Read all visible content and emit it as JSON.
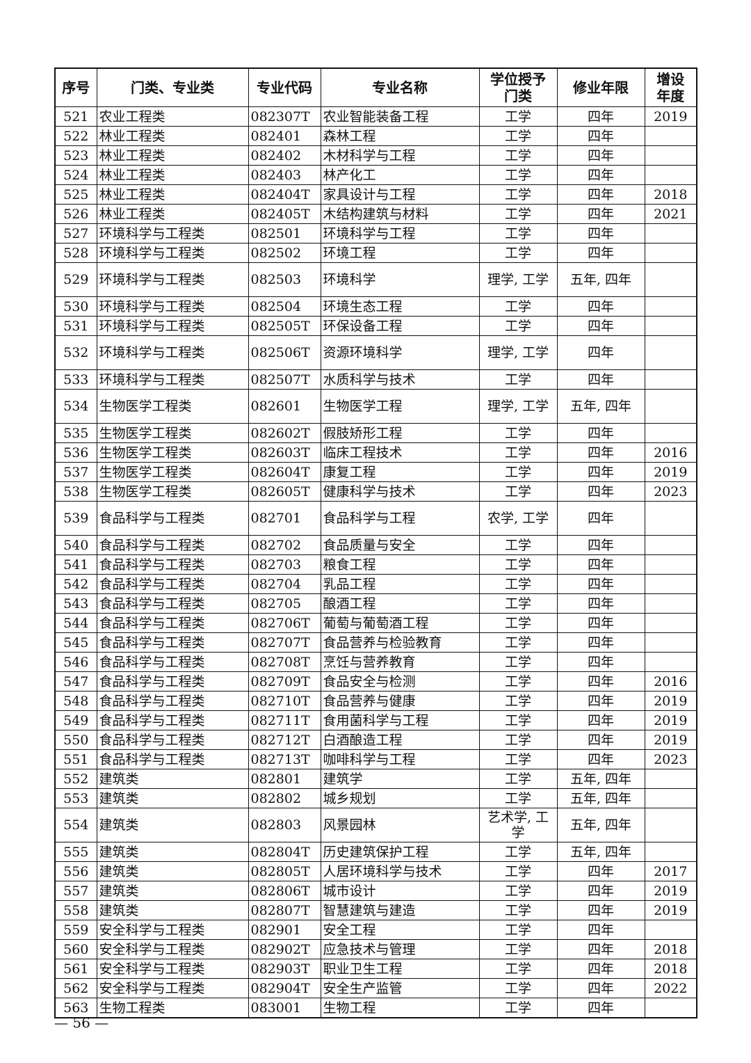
{
  "table": {
    "headers": [
      "序号",
      "门类、专业类",
      "专业代码",
      "专业名称",
      "学位授予门类",
      "修业年限",
      "增设年度"
    ],
    "rows": [
      [
        "521",
        "农业工程类",
        "082307T",
        "农业智能装备工程",
        "工学",
        "四年",
        "2019"
      ],
      [
        "522",
        "林业工程类",
        "082401",
        "森林工程",
        "工学",
        "四年",
        ""
      ],
      [
        "523",
        "林业工程类",
        "082402",
        "木材科学与工程",
        "工学",
        "四年",
        ""
      ],
      [
        "524",
        "林业工程类",
        "082403",
        "林产化工",
        "工学",
        "四年",
        ""
      ],
      [
        "525",
        "林业工程类",
        "082404T",
        "家具设计与工程",
        "工学",
        "四年",
        "2018"
      ],
      [
        "526",
        "林业工程类",
        "082405T",
        "木结构建筑与材料",
        "工学",
        "四年",
        "2021"
      ],
      [
        "527",
        "环境科学与工程类",
        "082501",
        "环境科学与工程",
        "工学",
        "四年",
        ""
      ],
      [
        "528",
        "环境科学与工程类",
        "082502",
        "环境工程",
        "工学",
        "四年",
        ""
      ],
      [
        "529",
        "环境科学与工程类",
        "082503",
        "环境科学",
        "理学, 工学",
        "五年, 四年",
        ""
      ],
      [
        "530",
        "环境科学与工程类",
        "082504",
        "环境生态工程",
        "工学",
        "四年",
        ""
      ],
      [
        "531",
        "环境科学与工程类",
        "082505T",
        "环保设备工程",
        "工学",
        "四年",
        ""
      ],
      [
        "532",
        "环境科学与工程类",
        "082506T",
        "资源环境科学",
        "理学, 工学",
        "四年",
        ""
      ],
      [
        "533",
        "环境科学与工程类",
        "082507T",
        "水质科学与技术",
        "工学",
        "四年",
        ""
      ],
      [
        "534",
        "生物医学工程类",
        "082601",
        "生物医学工程",
        "理学, 工学",
        "五年, 四年",
        ""
      ],
      [
        "535",
        "生物医学工程类",
        "082602T",
        "假肢矫形工程",
        "工学",
        "四年",
        ""
      ],
      [
        "536",
        "生物医学工程类",
        "082603T",
        "临床工程技术",
        "工学",
        "四年",
        "2016"
      ],
      [
        "537",
        "生物医学工程类",
        "082604T",
        "康复工程",
        "工学",
        "四年",
        "2019"
      ],
      [
        "538",
        "生物医学工程类",
        "082605T",
        "健康科学与技术",
        "工学",
        "四年",
        "2023"
      ],
      [
        "539",
        "食品科学与工程类",
        "082701",
        "食品科学与工程",
        "农学, 工学",
        "四年",
        ""
      ],
      [
        "540",
        "食品科学与工程类",
        "082702",
        "食品质量与安全",
        "工学",
        "四年",
        ""
      ],
      [
        "541",
        "食品科学与工程类",
        "082703",
        "粮食工程",
        "工学",
        "四年",
        ""
      ],
      [
        "542",
        "食品科学与工程类",
        "082704",
        "乳品工程",
        "工学",
        "四年",
        ""
      ],
      [
        "543",
        "食品科学与工程类",
        "082705",
        "酿酒工程",
        "工学",
        "四年",
        ""
      ],
      [
        "544",
        "食品科学与工程类",
        "082706T",
        "葡萄与葡萄酒工程",
        "工学",
        "四年",
        ""
      ],
      [
        "545",
        "食品科学与工程类",
        "082707T",
        "食品营养与检验教育",
        "工学",
        "四年",
        ""
      ],
      [
        "546",
        "食品科学与工程类",
        "082708T",
        "烹饪与营养教育",
        "工学",
        "四年",
        ""
      ],
      [
        "547",
        "食品科学与工程类",
        "082709T",
        "食品安全与检测",
        "工学",
        "四年",
        "2016"
      ],
      [
        "548",
        "食品科学与工程类",
        "082710T",
        "食品营养与健康",
        "工学",
        "四年",
        "2019"
      ],
      [
        "549",
        "食品科学与工程类",
        "082711T",
        "食用菌科学与工程",
        "工学",
        "四年",
        "2019"
      ],
      [
        "550",
        "食品科学与工程类",
        "082712T",
        "白酒酿造工程",
        "工学",
        "四年",
        "2019"
      ],
      [
        "551",
        "食品科学与工程类",
        "082713T",
        "咖啡科学与工程",
        "工学",
        "四年",
        "2023"
      ],
      [
        "552",
        "建筑类",
        "082801",
        "建筑学",
        "工学",
        "五年, 四年",
        ""
      ],
      [
        "553",
        "建筑类",
        "082802",
        "城乡规划",
        "工学",
        "五年, 四年",
        ""
      ],
      [
        "554",
        "建筑类",
        "082803",
        "风景园林",
        "艺术学, 工学",
        "五年, 四年",
        ""
      ],
      [
        "555",
        "建筑类",
        "082804T",
        "历史建筑保护工程",
        "工学",
        "五年, 四年",
        ""
      ],
      [
        "556",
        "建筑类",
        "082805T",
        "人居环境科学与技术",
        "工学",
        "四年",
        "2017"
      ],
      [
        "557",
        "建筑类",
        "082806T",
        "城市设计",
        "工学",
        "四年",
        "2019"
      ],
      [
        "558",
        "建筑类",
        "082807T",
        "智慧建筑与建造",
        "工学",
        "四年",
        "2019"
      ],
      [
        "559",
        "安全科学与工程类",
        "082901",
        "安全工程",
        "工学",
        "四年",
        ""
      ],
      [
        "560",
        "安全科学与工程类",
        "082902T",
        "应急技术与管理",
        "工学",
        "四年",
        "2018"
      ],
      [
        "561",
        "安全科学与工程类",
        "082903T",
        "职业卫生工程",
        "工学",
        "四年",
        "2018"
      ],
      [
        "562",
        "安全科学与工程类",
        "082904T",
        "安全生产监管",
        "工学",
        "四年",
        "2022"
      ],
      [
        "563",
        "生物工程类",
        "083001",
        "生物工程",
        "工学",
        "四年",
        ""
      ]
    ]
  },
  "page_number": "— 56 —"
}
